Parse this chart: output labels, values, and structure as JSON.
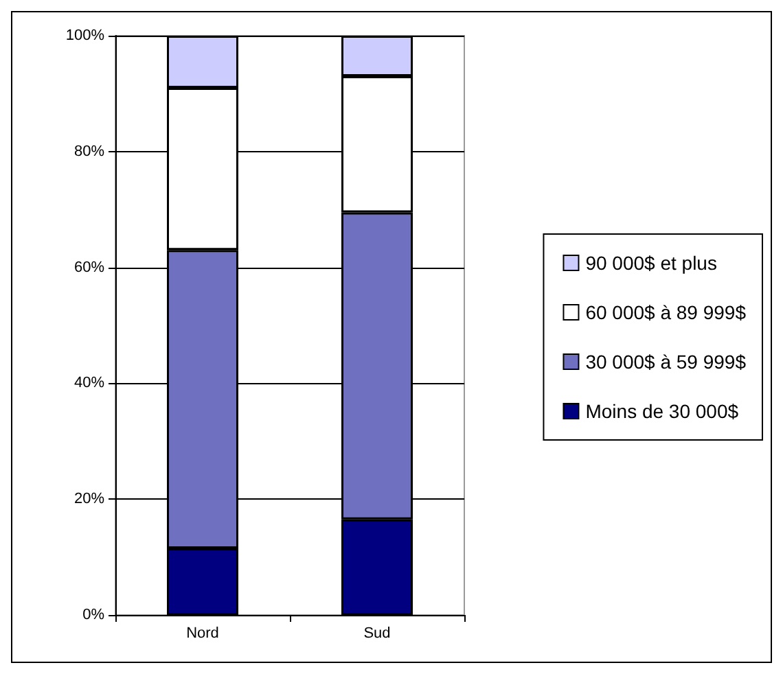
{
  "chart_data": {
    "type": "bar",
    "stacked": true,
    "categories": [
      "Nord",
      "Sud"
    ],
    "series": [
      {
        "name": "Moins de 30 000$",
        "color": "#000080",
        "values": [
          11.5,
          16.5
        ]
      },
      {
        "name": "30 000$ à 59 999$",
        "color": "#7070c0",
        "values": [
          51.5,
          53
        ]
      },
      {
        "name": "60 000$ à 89 999$",
        "color": "#ffffff",
        "values": [
          28,
          23.5
        ]
      },
      {
        "name": "90 000$ et plus",
        "color": "#ccccff",
        "values": [
          9,
          7
        ]
      }
    ],
    "ylim": [
      0,
      100
    ],
    "yticks": [
      {
        "value": 0,
        "label": "0%"
      },
      {
        "value": 20,
        "label": "20%"
      },
      {
        "value": 40,
        "label": "40%"
      },
      {
        "value": 60,
        "label": "60%"
      },
      {
        "value": 80,
        "label": "80%"
      },
      {
        "value": 100,
        "label": "100%"
      }
    ],
    "grid": "y",
    "legend": "right"
  }
}
